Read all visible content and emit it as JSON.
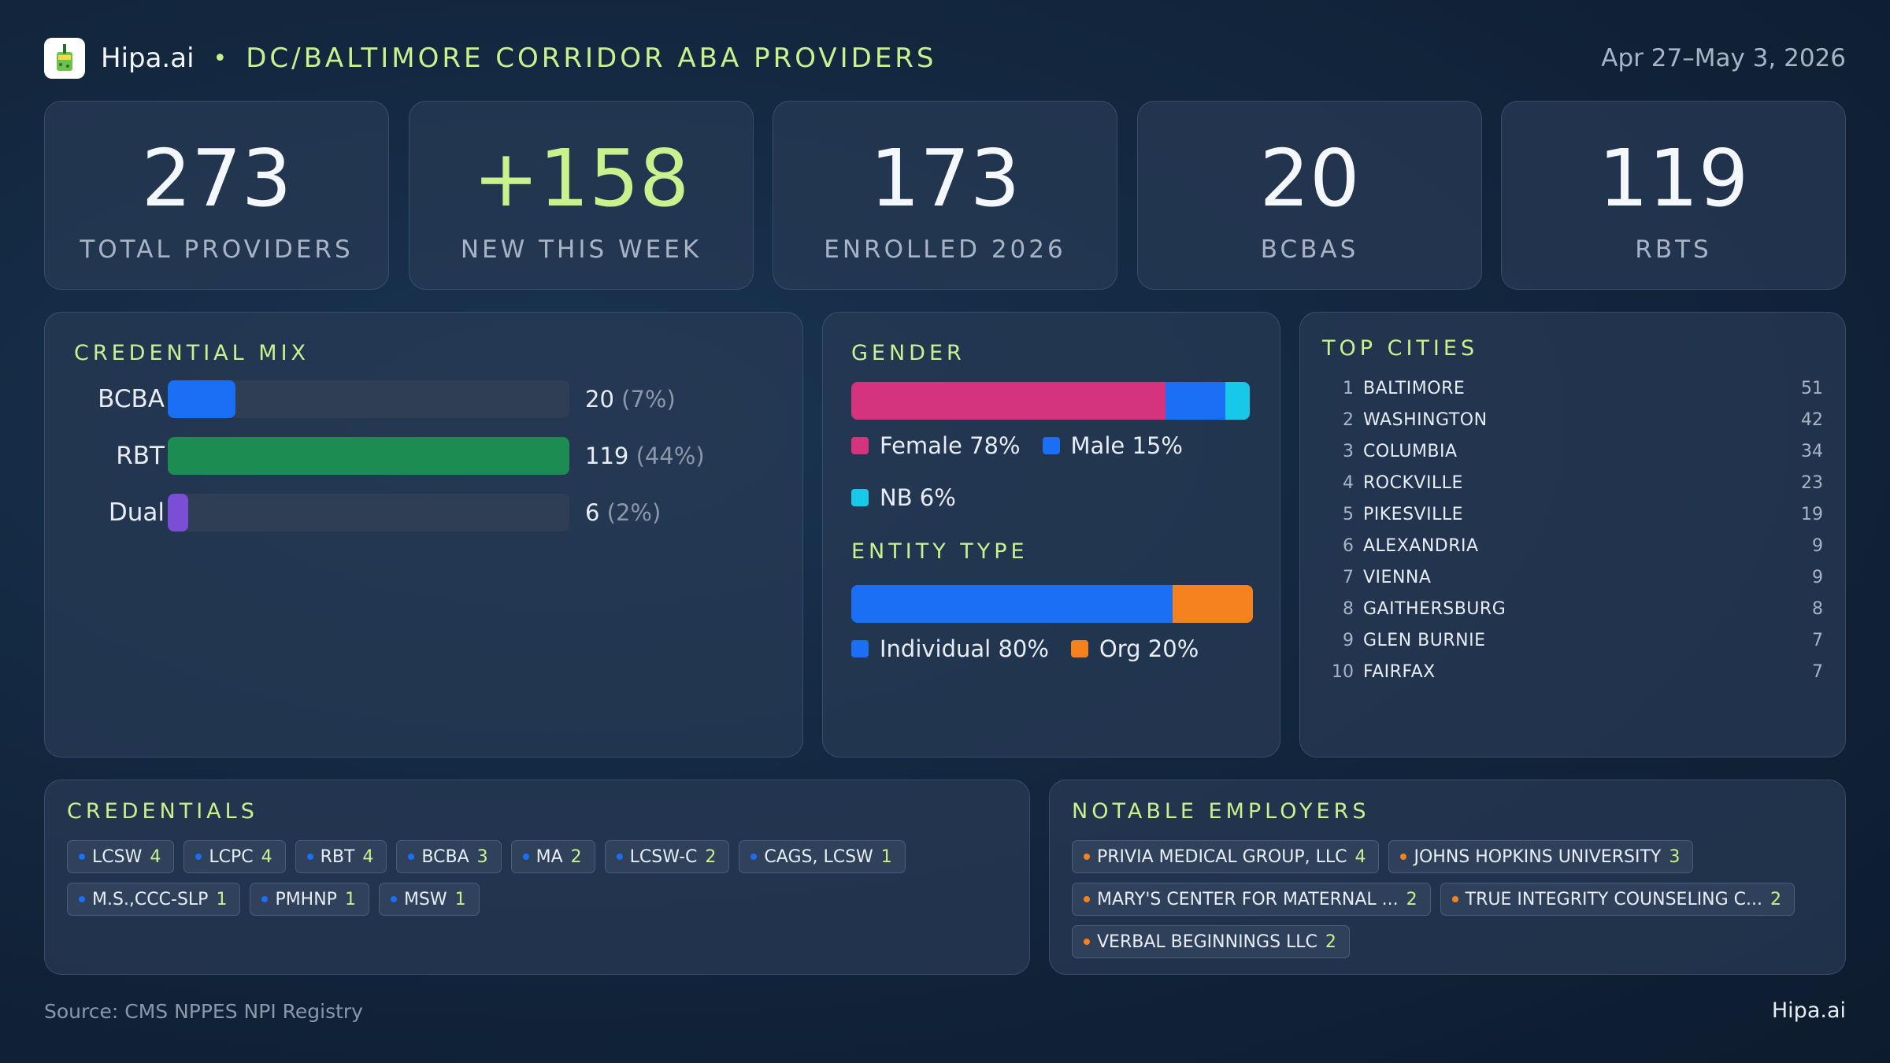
{
  "header": {
    "brand": "Hipa.ai",
    "separator": "•",
    "title": "DC/BALTIMORE CORRIDOR ABA PROVIDERS",
    "date_range": "Apr 27–May 3, 2026"
  },
  "kpis": [
    {
      "value": "273",
      "label": "TOTAL PROVIDERS"
    },
    {
      "value": "+158",
      "label": "NEW THIS WEEK"
    },
    {
      "value": "173",
      "label": "ENROLLED 2026"
    },
    {
      "value": "20",
      "label": "BCBAS"
    },
    {
      "value": "119",
      "label": "RBTS"
    }
  ],
  "credential_mix": {
    "title": "CREDENTIAL MIX",
    "rows": [
      {
        "label": "BCBA",
        "count": "20",
        "pct": "(7%)",
        "fraction": 0.168,
        "color": "#1a6ff5"
      },
      {
        "label": "RBT",
        "count": "119",
        "pct": "(44%)",
        "fraction": 1.0,
        "color": "#1d8c52"
      },
      {
        "label": "Dual",
        "count": "6",
        "pct": "(2%)",
        "fraction": 0.05,
        "color": "#7a4fd6"
      }
    ]
  },
  "gender": {
    "title": "GENDER",
    "segments": [
      {
        "label": "Female 78%",
        "share": 78,
        "color": "#d6337f"
      },
      {
        "label": "Male 15%",
        "share": 15,
        "color": "#1a6ff5"
      },
      {
        "label": "NB 6%",
        "share": 6,
        "color": "#18c8e8"
      }
    ]
  },
  "entity_type": {
    "title": "ENTITY TYPE",
    "segments": [
      {
        "label": "Individual 80%",
        "share": 80,
        "color": "#1a6ff5"
      },
      {
        "label": "Org 20%",
        "share": 20,
        "color": "#f5821f"
      }
    ]
  },
  "top_cities": {
    "title": "TOP CITIES",
    "items": [
      {
        "rank": "1",
        "name": "BALTIMORE",
        "count": "51"
      },
      {
        "rank": "2",
        "name": "WASHINGTON",
        "count": "42"
      },
      {
        "rank": "3",
        "name": "COLUMBIA",
        "count": "34"
      },
      {
        "rank": "4",
        "name": "ROCKVILLE",
        "count": "23"
      },
      {
        "rank": "5",
        "name": "PIKESVILLE",
        "count": "19"
      },
      {
        "rank": "6",
        "name": "ALEXANDRIA",
        "count": "9"
      },
      {
        "rank": "7",
        "name": "VIENNA",
        "count": "9"
      },
      {
        "rank": "8",
        "name": "GAITHERSBURG",
        "count": "8"
      },
      {
        "rank": "9",
        "name": "GLEN BURNIE",
        "count": "7"
      },
      {
        "rank": "10",
        "name": "FAIRFAX",
        "count": "7"
      }
    ]
  },
  "credentials": {
    "title": "CREDENTIALS",
    "dot_color": "#1a6ff5",
    "chips": [
      {
        "label": "LCSW",
        "count": "4"
      },
      {
        "label": "LCPC",
        "count": "4"
      },
      {
        "label": "RBT",
        "count": "4"
      },
      {
        "label": "BCBA",
        "count": "3"
      },
      {
        "label": "MA",
        "count": "2"
      },
      {
        "label": "LCSW-C",
        "count": "2"
      },
      {
        "label": "CAGS, LCSW",
        "count": "1"
      },
      {
        "label": "M.S.,CCC-SLP",
        "count": "1"
      },
      {
        "label": "PMHNP",
        "count": "1"
      },
      {
        "label": "MSW",
        "count": "1"
      }
    ]
  },
  "employers": {
    "title": "NOTABLE EMPLOYERS",
    "dot_color": "#f5821f",
    "chips": [
      {
        "label": "PRIVIA MEDICAL GROUP, LLC",
        "count": "4"
      },
      {
        "label": "JOHNS HOPKINS UNIVERSITY",
        "count": "3"
      },
      {
        "label": "MARY'S CENTER FOR MATERNAL ...",
        "count": "2"
      },
      {
        "label": "TRUE INTEGRITY COUNSELING C...",
        "count": "2"
      },
      {
        "label": "VERBAL BEGINNINGS LLC",
        "count": "2"
      }
    ]
  },
  "footer": {
    "source": "Source: CMS NPPES NPI Registry",
    "brand": "Hipa.ai"
  },
  "colors": {
    "accent": "#c9f28e",
    "background": "#13273f",
    "card": "#283a54"
  },
  "icons": {
    "logo": "cup-drink-icon"
  }
}
